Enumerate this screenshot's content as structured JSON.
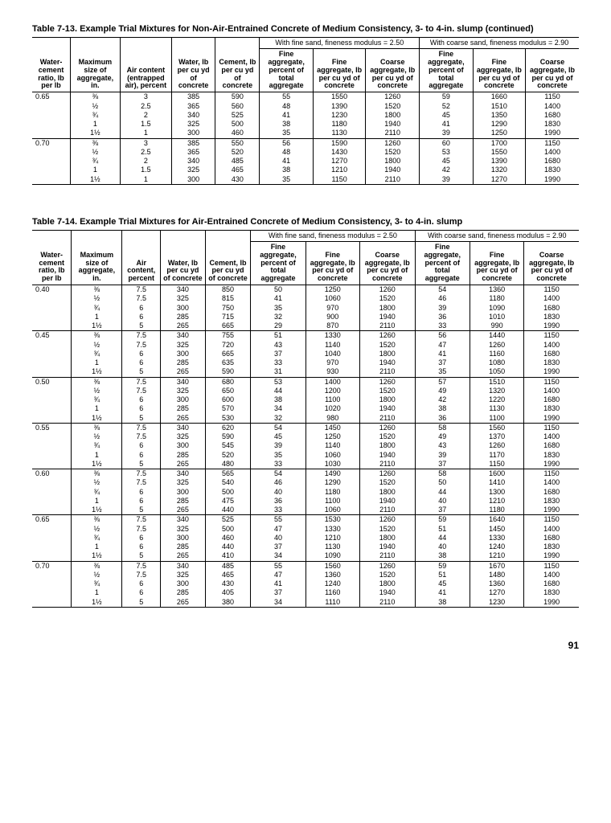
{
  "page_number": "91",
  "table713": {
    "title": "Table 7-13.  Example Trial Mixtures for Non-Air-Entrained Concrete of Medium Consistency, 3- to 4-in. slump (continued)",
    "group_fine": "With fine sand,\nfineness modulus = 2.50",
    "group_coarse": "With coarse sand,\nfineness modulus = 2.90",
    "headers": {
      "c0": "Water-\ncement\nratio,\nlb per lb",
      "c1": "Maximum\nsize of\naggregate,\nin.",
      "c2": "Air content\n(entrapped\nair),\npercent",
      "c3": "Water,\nlb per\ncu yd of\nconcrete",
      "c4": "Cement,\nlb per\ncu yd of\nconcrete",
      "c5": "Fine\naggregate,\npercent\nof total\naggregate",
      "c6": "Fine\naggregate,\nlb per\ncu yd of\nconcrete",
      "c7": "Coarse\naggregate,\nlb per\ncu yd of\nconcrete",
      "c8": "Fine\naggregate,\npercent\nof total\naggregate",
      "c9": "Fine\naggregate,\nlb per\ncu yd of\nconcrete",
      "c10": "Coarse\naggregate,\nlb per\ncu yd of\nconcrete"
    },
    "rows": [
      {
        "r": "0.65",
        "a": "⅜",
        "air": "3",
        "w": "385",
        "cm": "590",
        "f1": "55",
        "f2": "1550",
        "f3": "1260",
        "c1": "59",
        "c2": "1660",
        "c3": "1150"
      },
      {
        "r": "",
        "a": "½",
        "air": "2.5",
        "w": "365",
        "cm": "560",
        "f1": "48",
        "f2": "1390",
        "f3": "1520",
        "c1": "52",
        "c2": "1510",
        "c3": "1400"
      },
      {
        "r": "",
        "a": "¾",
        "air": "2",
        "w": "340",
        "cm": "525",
        "f1": "41",
        "f2": "1230",
        "f3": "1800",
        "c1": "45",
        "c2": "1350",
        "c3": "1680"
      },
      {
        "r": "",
        "a": "1",
        "air": "1.5",
        "w": "325",
        "cm": "500",
        "f1": "38",
        "f2": "1180",
        "f3": "1940",
        "c1": "41",
        "c2": "1290",
        "c3": "1830"
      },
      {
        "r": "",
        "a": "1½",
        "air": "1",
        "w": "300",
        "cm": "460",
        "f1": "35",
        "f2": "1130",
        "f3": "2110",
        "c1": "39",
        "c2": "1250",
        "c3": "1990"
      },
      {
        "r": "0.70",
        "a": "⅜",
        "air": "3",
        "w": "385",
        "cm": "550",
        "f1": "56",
        "f2": "1590",
        "f3": "1260",
        "c1": "60",
        "c2": "1700",
        "c3": "1150"
      },
      {
        "r": "",
        "a": "½",
        "air": "2.5",
        "w": "365",
        "cm": "520",
        "f1": "48",
        "f2": "1430",
        "f3": "1520",
        "c1": "53",
        "c2": "1550",
        "c3": "1400"
      },
      {
        "r": "",
        "a": "¾",
        "air": "2",
        "w": "340",
        "cm": "485",
        "f1": "41",
        "f2": "1270",
        "f3": "1800",
        "c1": "45",
        "c2": "1390",
        "c3": "1680"
      },
      {
        "r": "",
        "a": "1",
        "air": "1.5",
        "w": "325",
        "cm": "465",
        "f1": "38",
        "f2": "1210",
        "f3": "1940",
        "c1": "42",
        "c2": "1320",
        "c3": "1830"
      },
      {
        "r": "",
        "a": "1½",
        "air": "1",
        "w": "300",
        "cm": "430",
        "f1": "35",
        "f2": "1150",
        "f3": "2110",
        "c1": "39",
        "c2": "1270",
        "c3": "1990"
      }
    ]
  },
  "table714": {
    "title": "Table 7-14.  Example Trial Mixtures for Air-Entrained Concrete of Medium Consistency, 3- to 4-in. slump",
    "group_fine": "With fine sand,\nfineness modulus = 2.50",
    "group_coarse": "With coarse sand,\nfineness modulus = 2.90",
    "headers": {
      "c0": "Water-\ncement\nratio,\nlb per lb",
      "c1": "Maximum\nsize of\naggregate,\nin.",
      "c2": "Air\ncontent,\npercent",
      "c3": "Water,\nlb per\ncu yd of\nconcrete",
      "c4": "Cement,\nlb per\ncu yd of\nconcrete",
      "c5": "Fine\naggregate,\npercent\nof total\naggregate",
      "c6": "Fine\naggregate,\nlb per\ncu yd of\nconcrete",
      "c7": "Coarse\naggregate,\nlb per\ncu yd of\nconcrete",
      "c8": "Fine\naggregate,\npercent\nof total\naggregate",
      "c9": "Fine\naggregate,\nlb per\ncu yd of\nconcrete",
      "c10": "Coarse\naggregate,\nlb per\ncu yd of\nconcrete"
    },
    "rows": [
      {
        "r": "0.40",
        "a": "⅜",
        "air": "7.5",
        "w": "340",
        "cm": "850",
        "f1": "50",
        "f2": "1250",
        "f3": "1260",
        "c1": "54",
        "c2": "1360",
        "c3": "1150"
      },
      {
        "r": "",
        "a": "½",
        "air": "7.5",
        "w": "325",
        "cm": "815",
        "f1": "41",
        "f2": "1060",
        "f3": "1520",
        "c1": "46",
        "c2": "1180",
        "c3": "1400"
      },
      {
        "r": "",
        "a": "¾",
        "air": "6",
        "w": "300",
        "cm": "750",
        "f1": "35",
        "f2": "970",
        "f3": "1800",
        "c1": "39",
        "c2": "1090",
        "c3": "1680"
      },
      {
        "r": "",
        "a": "1",
        "air": "6",
        "w": "285",
        "cm": "715",
        "f1": "32",
        "f2": "900",
        "f3": "1940",
        "c1": "36",
        "c2": "1010",
        "c3": "1830"
      },
      {
        "r": "",
        "a": "1½",
        "air": "5",
        "w": "265",
        "cm": "665",
        "f1": "29",
        "f2": "870",
        "f3": "2110",
        "c1": "33",
        "c2": "990",
        "c3": "1990"
      },
      {
        "r": "0.45",
        "a": "⅜",
        "air": "7.5",
        "w": "340",
        "cm": "755",
        "f1": "51",
        "f2": "1330",
        "f3": "1260",
        "c1": "56",
        "c2": "1440",
        "c3": "1150"
      },
      {
        "r": "",
        "a": "½",
        "air": "7.5",
        "w": "325",
        "cm": "720",
        "f1": "43",
        "f2": "1140",
        "f3": "1520",
        "c1": "47",
        "c2": "1260",
        "c3": "1400"
      },
      {
        "r": "",
        "a": "¾",
        "air": "6",
        "w": "300",
        "cm": "665",
        "f1": "37",
        "f2": "1040",
        "f3": "1800",
        "c1": "41",
        "c2": "1160",
        "c3": "1680"
      },
      {
        "r": "",
        "a": "1",
        "air": "6",
        "w": "285",
        "cm": "635",
        "f1": "33",
        "f2": "970",
        "f3": "1940",
        "c1": "37",
        "c2": "1080",
        "c3": "1830"
      },
      {
        "r": "",
        "a": "1½",
        "air": "5",
        "w": "265",
        "cm": "590",
        "f1": "31",
        "f2": "930",
        "f3": "2110",
        "c1": "35",
        "c2": "1050",
        "c3": "1990"
      },
      {
        "r": "0.50",
        "a": "⅜",
        "air": "7.5",
        "w": "340",
        "cm": "680",
        "f1": "53",
        "f2": "1400",
        "f3": "1260",
        "c1": "57",
        "c2": "1510",
        "c3": "1150"
      },
      {
        "r": "",
        "a": "½",
        "air": "7.5",
        "w": "325",
        "cm": "650",
        "f1": "44",
        "f2": "1200",
        "f3": "1520",
        "c1": "49",
        "c2": "1320",
        "c3": "1400"
      },
      {
        "r": "",
        "a": "¾",
        "air": "6",
        "w": "300",
        "cm": "600",
        "f1": "38",
        "f2": "1100",
        "f3": "1800",
        "c1": "42",
        "c2": "1220",
        "c3": "1680"
      },
      {
        "r": "",
        "a": "1",
        "air": "6",
        "w": "285",
        "cm": "570",
        "f1": "34",
        "f2": "1020",
        "f3": "1940",
        "c1": "38",
        "c2": "1130",
        "c3": "1830"
      },
      {
        "r": "",
        "a": "1½",
        "air": "5",
        "w": "265",
        "cm": "530",
        "f1": "32",
        "f2": "980",
        "f3": "2110",
        "c1": "36",
        "c2": "1100",
        "c3": "1990"
      },
      {
        "r": "0.55",
        "a": "⅜",
        "air": "7.5",
        "w": "340",
        "cm": "620",
        "f1": "54",
        "f2": "1450",
        "f3": "1260",
        "c1": "58",
        "c2": "1560",
        "c3": "1150"
      },
      {
        "r": "",
        "a": "½",
        "air": "7.5",
        "w": "325",
        "cm": "590",
        "f1": "45",
        "f2": "1250",
        "f3": "1520",
        "c1": "49",
        "c2": "1370",
        "c3": "1400"
      },
      {
        "r": "",
        "a": "¾",
        "air": "6",
        "w": "300",
        "cm": "545",
        "f1": "39",
        "f2": "1140",
        "f3": "1800",
        "c1": "43",
        "c2": "1260",
        "c3": "1680"
      },
      {
        "r": "",
        "a": "1",
        "air": "6",
        "w": "285",
        "cm": "520",
        "f1": "35",
        "f2": "1060",
        "f3": "1940",
        "c1": "39",
        "c2": "1170",
        "c3": "1830"
      },
      {
        "r": "",
        "a": "1½",
        "air": "5",
        "w": "265",
        "cm": "480",
        "f1": "33",
        "f2": "1030",
        "f3": "2110",
        "c1": "37",
        "c2": "1150",
        "c3": "1990"
      },
      {
        "r": "0.60",
        "a": "⅜",
        "air": "7.5",
        "w": "340",
        "cm": "565",
        "f1": "54",
        "f2": "1490",
        "f3": "1260",
        "c1": "58",
        "c2": "1600",
        "c3": "1150"
      },
      {
        "r": "",
        "a": "½",
        "air": "7.5",
        "w": "325",
        "cm": "540",
        "f1": "46",
        "f2": "1290",
        "f3": "1520",
        "c1": "50",
        "c2": "1410",
        "c3": "1400"
      },
      {
        "r": "",
        "a": "¾",
        "air": "6",
        "w": "300",
        "cm": "500",
        "f1": "40",
        "f2": "1180",
        "f3": "1800",
        "c1": "44",
        "c2": "1300",
        "c3": "1680"
      },
      {
        "r": "",
        "a": "1",
        "air": "6",
        "w": "285",
        "cm": "475",
        "f1": "36",
        "f2": "1100",
        "f3": "1940",
        "c1": "40",
        "c2": "1210",
        "c3": "1830"
      },
      {
        "r": "",
        "a": "1½",
        "air": "5",
        "w": "265",
        "cm": "440",
        "f1": "33",
        "f2": "1060",
        "f3": "2110",
        "c1": "37",
        "c2": "1180",
        "c3": "1990"
      },
      {
        "r": "0.65",
        "a": "⅜",
        "air": "7.5",
        "w": "340",
        "cm": "525",
        "f1": "55",
        "f2": "1530",
        "f3": "1260",
        "c1": "59",
        "c2": "1640",
        "c3": "1150"
      },
      {
        "r": "",
        "a": "½",
        "air": "7.5",
        "w": "325",
        "cm": "500",
        "f1": "47",
        "f2": "1330",
        "f3": "1520",
        "c1": "51",
        "c2": "1450",
        "c3": "1400"
      },
      {
        "r": "",
        "a": "¾",
        "air": "6",
        "w": "300",
        "cm": "460",
        "f1": "40",
        "f2": "1210",
        "f3": "1800",
        "c1": "44",
        "c2": "1330",
        "c3": "1680"
      },
      {
        "r": "",
        "a": "1",
        "air": "6",
        "w": "285",
        "cm": "440",
        "f1": "37",
        "f2": "1130",
        "f3": "1940",
        "c1": "40",
        "c2": "1240",
        "c3": "1830"
      },
      {
        "r": "",
        "a": "1½",
        "air": "5",
        "w": "265",
        "cm": "410",
        "f1": "34",
        "f2": "1090",
        "f3": "2110",
        "c1": "38",
        "c2": "1210",
        "c3": "1990"
      },
      {
        "r": "0.70",
        "a": "⅜",
        "air": "7.5",
        "w": "340",
        "cm": "485",
        "f1": "55",
        "f2": "1560",
        "f3": "1260",
        "c1": "59",
        "c2": "1670",
        "c3": "1150"
      },
      {
        "r": "",
        "a": "½",
        "air": "7.5",
        "w": "325",
        "cm": "465",
        "f1": "47",
        "f2": "1360",
        "f3": "1520",
        "c1": "51",
        "c2": "1480",
        "c3": "1400"
      },
      {
        "r": "",
        "a": "¾",
        "air": "6",
        "w": "300",
        "cm": "430",
        "f1": "41",
        "f2": "1240",
        "f3": "1800",
        "c1": "45",
        "c2": "1360",
        "c3": "1680"
      },
      {
        "r": "",
        "a": "1",
        "air": "6",
        "w": "285",
        "cm": "405",
        "f1": "37",
        "f2": "1160",
        "f3": "1940",
        "c1": "41",
        "c2": "1270",
        "c3": "1830"
      },
      {
        "r": "",
        "a": "1½",
        "air": "5",
        "w": "265",
        "cm": "380",
        "f1": "34",
        "f2": "1110",
        "f3": "2110",
        "c1": "38",
        "c2": "1230",
        "c3": "1990"
      }
    ]
  }
}
